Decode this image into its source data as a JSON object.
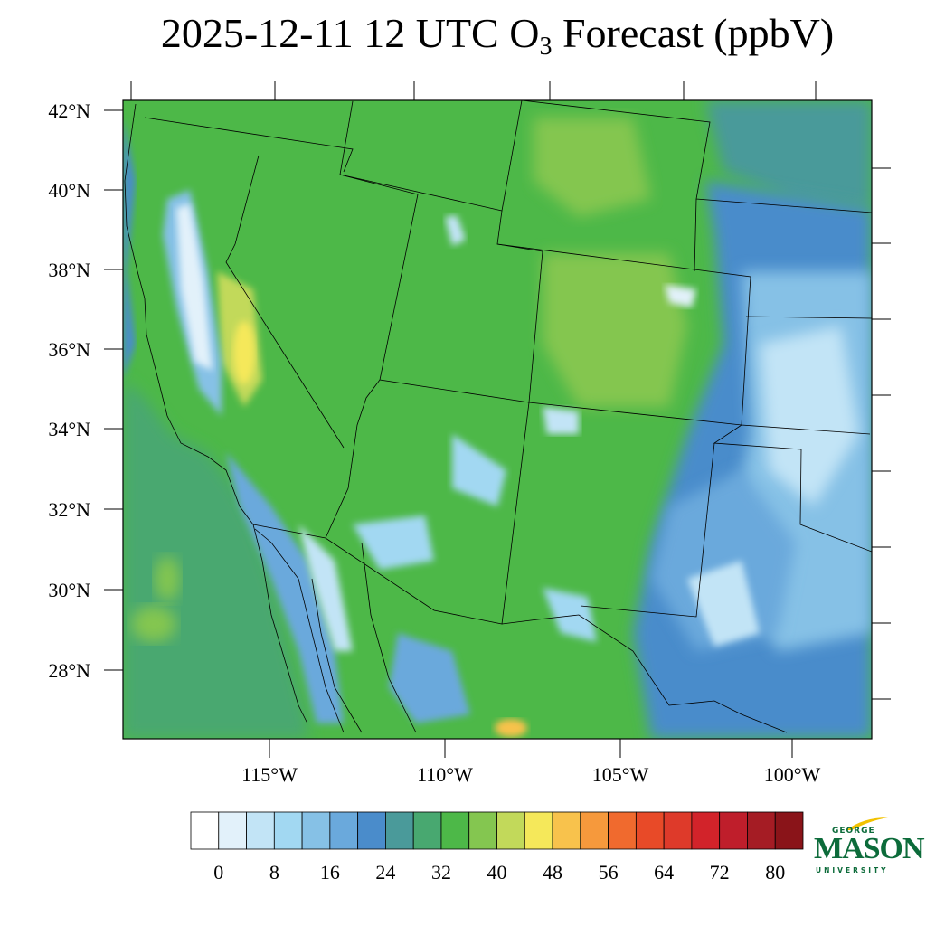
{
  "title": {
    "main": "2025-12-11 12 UTC O",
    "subscript": "3",
    "suffix": " Forecast (ppbV)"
  },
  "map": {
    "lat_labels": [
      "42°N",
      "40°N",
      "38°N",
      "36°N",
      "34°N",
      "32°N",
      "30°N",
      "28°N"
    ],
    "lon_labels": [
      "115°W",
      "110°W",
      "105°W",
      "100°W"
    ]
  },
  "colorbar": {
    "colors": [
      "#ffffff",
      "#e2f1fa",
      "#c2e4f6",
      "#a2d8f2",
      "#86c1e6",
      "#6aa9dc",
      "#4a8ccb",
      "#4a9a9a",
      "#48a870",
      "#4db848",
      "#84c650",
      "#c2d95a",
      "#f5e85a",
      "#f8c24c",
      "#f6993c",
      "#f06a2e",
      "#e84a28",
      "#de3a2a",
      "#d2232a",
      "#bf1e2b",
      "#a51c24",
      "#8a1419"
    ],
    "labels": [
      "0",
      "8",
      "16",
      "24",
      "32",
      "40",
      "48",
      "56",
      "64",
      "72",
      "80"
    ],
    "color_names": [
      "white",
      "very light blue",
      "light blue",
      "sky blue",
      "blue",
      "blue",
      "dark blue",
      "teal",
      "green",
      "green",
      "yellow-green",
      "lime",
      "yellow",
      "orange-yellow",
      "orange",
      "red-orange",
      "red",
      "red",
      "crimson",
      "dark red",
      "dark red",
      "maroon"
    ]
  },
  "logo": {
    "top": "GEORGE",
    "name": "MASON",
    "bottom": "UNIVERSITY"
  }
}
